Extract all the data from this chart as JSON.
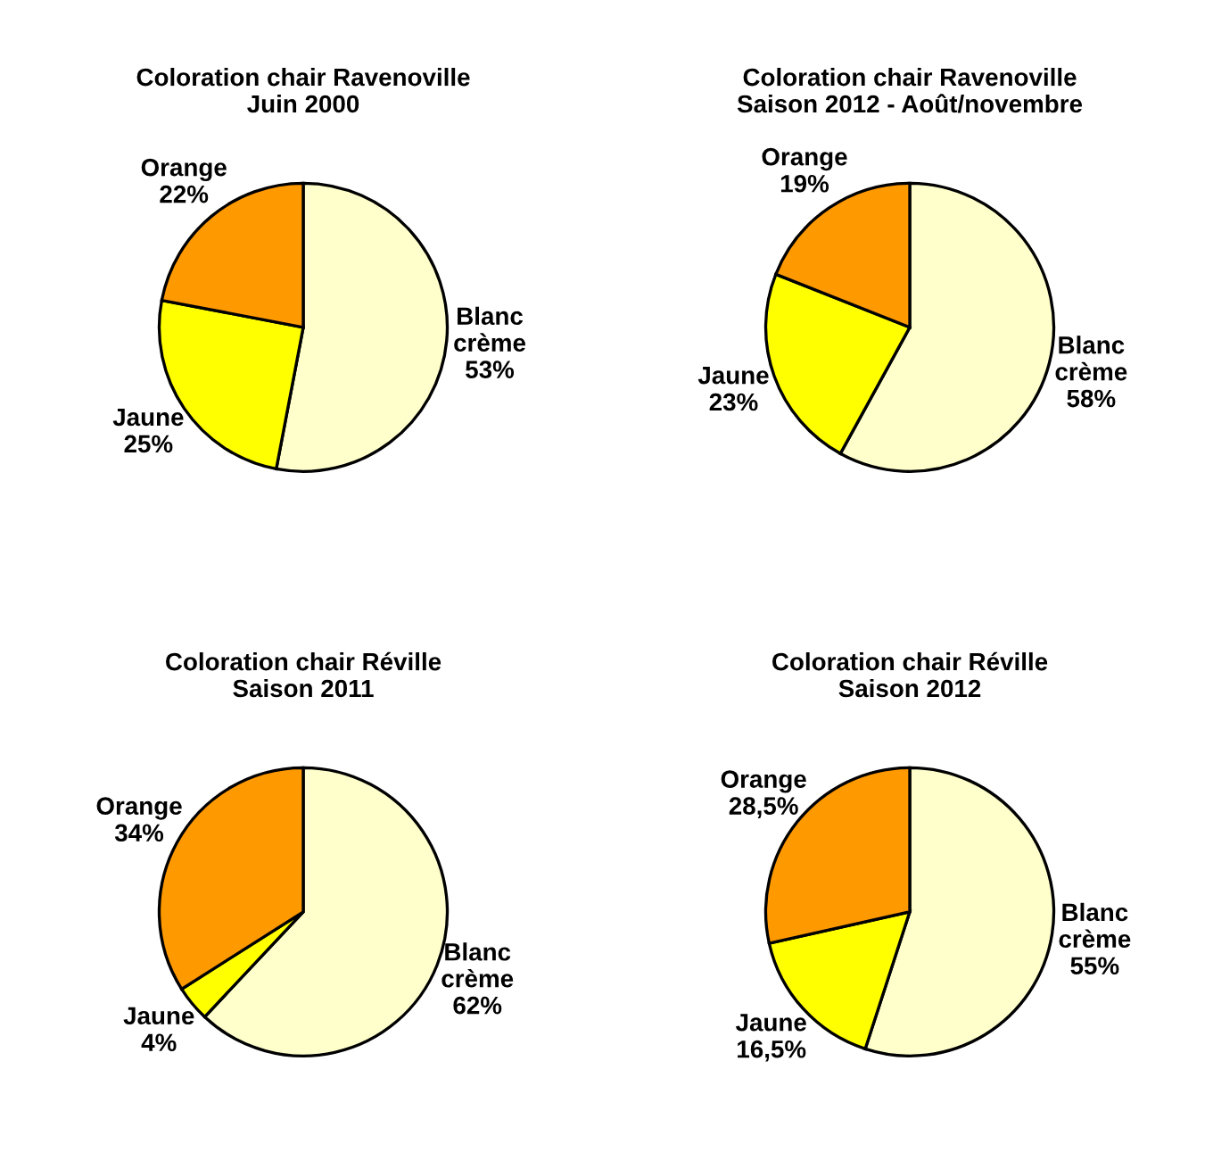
{
  "chart_data": [
    {
      "type": "pie",
      "title": "Coloration chair Ravenoville\nJuin 2000",
      "categories": [
        "Blanc\ncrème",
        "Jaune",
        "Orange"
      ],
      "values": [
        53,
        25,
        22
      ],
      "value_labels": [
        "53%",
        "25%",
        "22%"
      ],
      "colors": [
        "#ffffcc",
        "#ffff00",
        "#ff9900"
      ]
    },
    {
      "type": "pie",
      "title": "Coloration chair Ravenoville\nSaison 2012 - Août/novembre",
      "categories": [
        "Blanc\ncrème",
        "Jaune",
        "Orange"
      ],
      "values": [
        58,
        23,
        19
      ],
      "value_labels": [
        "58%",
        "23%",
        "19%"
      ],
      "colors": [
        "#ffffcc",
        "#ffff00",
        "#ff9900"
      ]
    },
    {
      "type": "pie",
      "title": "Coloration chair Réville\nSaison 2011",
      "categories": [
        "Blanc\ncrème",
        "Jaune",
        "Orange"
      ],
      "values": [
        62,
        4,
        34
      ],
      "value_labels": [
        "62%",
        "4%",
        "34%"
      ],
      "colors": [
        "#ffffcc",
        "#ffff00",
        "#ff9900"
      ]
    },
    {
      "type": "pie",
      "title": "Coloration chair Réville\nSaison 2012",
      "categories": [
        "Blanc\ncrème",
        "Jaune",
        "Orange"
      ],
      "values": [
        55,
        16.5,
        28.5
      ],
      "value_labels": [
        "55%",
        "16,5%",
        "28,5%"
      ],
      "colors": [
        "#ffffcc",
        "#ffff00",
        "#ff9900"
      ]
    }
  ]
}
